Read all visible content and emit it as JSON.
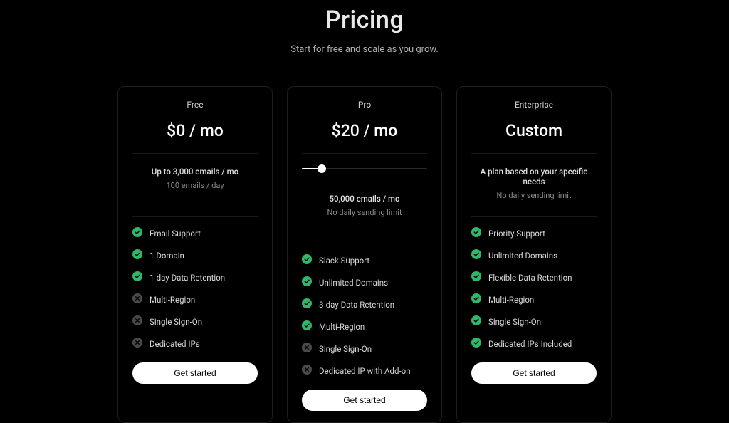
{
  "header": {
    "title": "Pricing",
    "subtitle": "Start for free and scale as you grow."
  },
  "colors": {
    "background": "#000000",
    "card_border": "#1e1e1e",
    "text_primary": "#ffffff",
    "text_muted": "#8a8a8a",
    "icon_included": "#2fb86a",
    "icon_excluded": "#4a4a4a",
    "cta_bg": "#ffffff",
    "cta_text": "#000000",
    "slider_track": "#2a2a2a",
    "slider_fill": "#ffffff"
  },
  "plans": [
    {
      "name": "Free",
      "price": "$0 / mo",
      "meta_primary": "Up to 3,000 emails / mo",
      "meta_secondary": "100 emails / day",
      "has_slider": false,
      "features": [
        {
          "label": "Email Support",
          "included": true
        },
        {
          "label": "1 Domain",
          "included": true
        },
        {
          "label": "1-day Data Retention",
          "included": true
        },
        {
          "label": "Multi-Region",
          "included": false
        },
        {
          "label": "Single Sign-On",
          "included": false
        },
        {
          "label": "Dedicated IPs",
          "included": false
        }
      ],
      "cta": "Get started"
    },
    {
      "name": "Pro",
      "price": "$20 / mo",
      "meta_primary": "50,000 emails / mo",
      "meta_secondary": "No daily sending limit",
      "has_slider": true,
      "slider_percent": 16,
      "features": [
        {
          "label": "Slack Support",
          "included": true
        },
        {
          "label": "Unlimited Domains",
          "included": true
        },
        {
          "label": "3-day Data Retention",
          "included": true
        },
        {
          "label": "Multi-Region",
          "included": true
        },
        {
          "label": "Single Sign-On",
          "included": false
        },
        {
          "label": "Dedicated IP with Add-on",
          "included": false
        }
      ],
      "cta": "Get started"
    },
    {
      "name": "Enterprise",
      "price": "Custom",
      "meta_primary": "A plan based on your specific needs",
      "meta_secondary": "No daily sending limit",
      "has_slider": false,
      "features": [
        {
          "label": "Priority Support",
          "included": true
        },
        {
          "label": "Unlimited Domains",
          "included": true
        },
        {
          "label": "Flexible Data Retention",
          "included": true
        },
        {
          "label": "Multi-Region",
          "included": true
        },
        {
          "label": "Single Sign-On",
          "included": true
        },
        {
          "label": "Dedicated IPs Included",
          "included": true
        }
      ],
      "cta": "Get started"
    }
  ]
}
